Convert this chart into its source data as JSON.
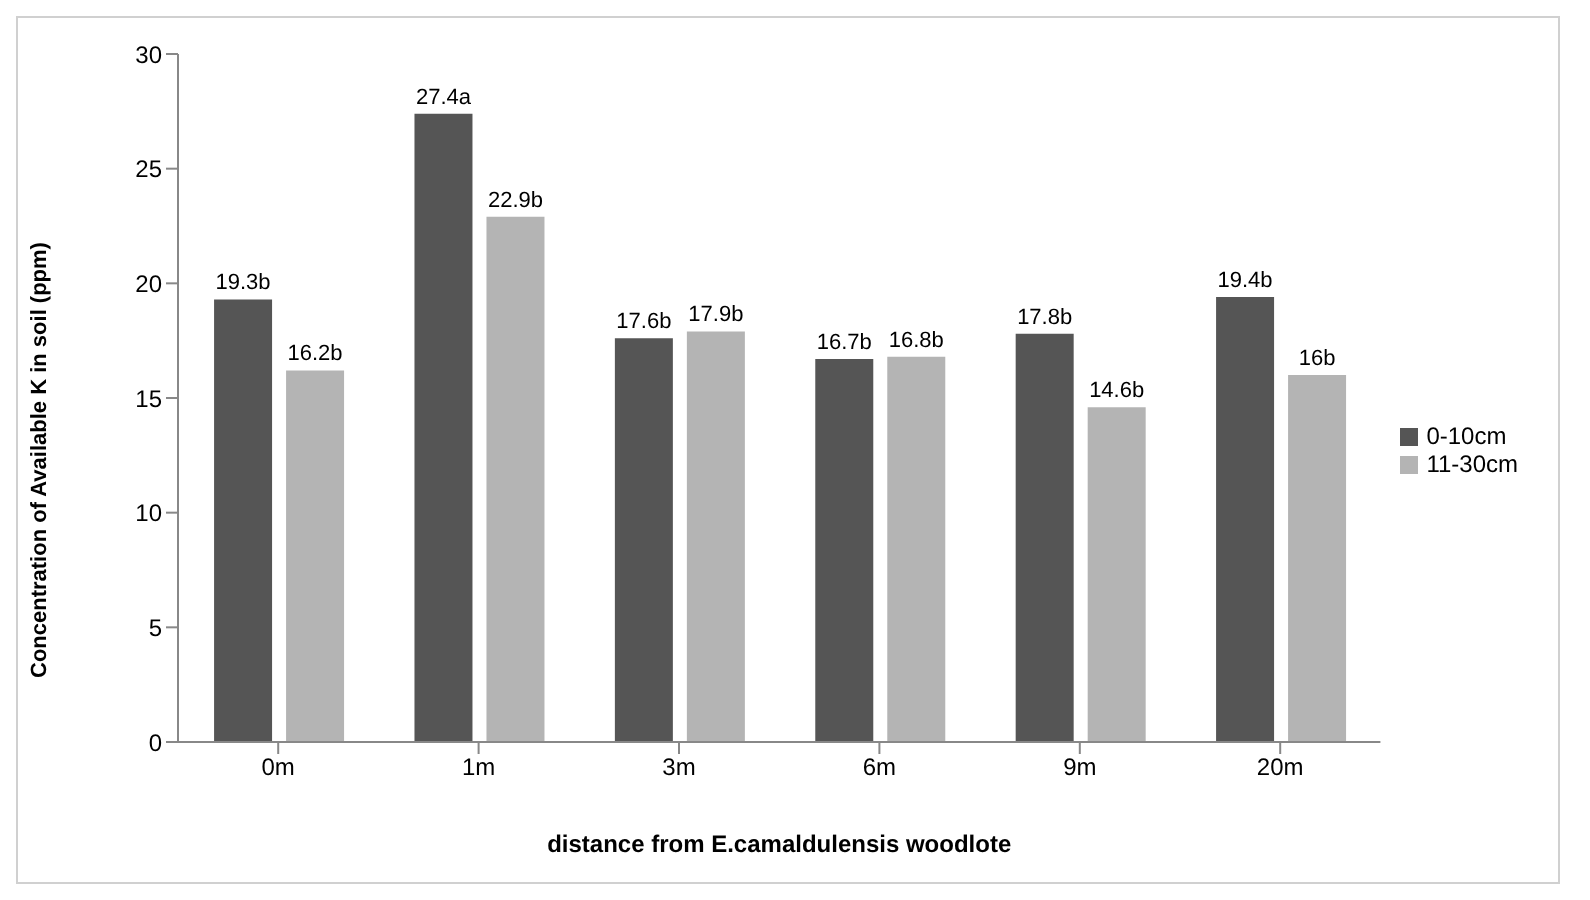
{
  "chart_data": {
    "type": "bar",
    "xlabel": "distance from E.camaldulensis woodlote",
    "ylabel": "Concentration  of Available K in soil (ppm)",
    "categories": [
      "0m",
      "1m",
      "3m",
      "6m",
      "9m",
      "20m"
    ],
    "series": [
      {
        "name": "0-10cm",
        "color": "#555555",
        "values": [
          19.3,
          27.4,
          17.6,
          16.7,
          17.8,
          19.4
        ],
        "value_labels": [
          "19.3b",
          "27.4a",
          "17.6b",
          "16.7b",
          "17.8b",
          "19.4b"
        ]
      },
      {
        "name": "11-30cm",
        "color": "#b4b4b4",
        "values": [
          16.2,
          22.9,
          17.9,
          16.8,
          14.6,
          16
        ],
        "value_labels": [
          "16.2b",
          "22.9b",
          "17.9b",
          "16.8b",
          "14.6b",
          "16b"
        ]
      }
    ],
    "ylim": [
      0,
      30
    ],
    "yticks": [
      0,
      5,
      10,
      15,
      20,
      25,
      30
    ],
    "grid": false,
    "legend": "right"
  }
}
